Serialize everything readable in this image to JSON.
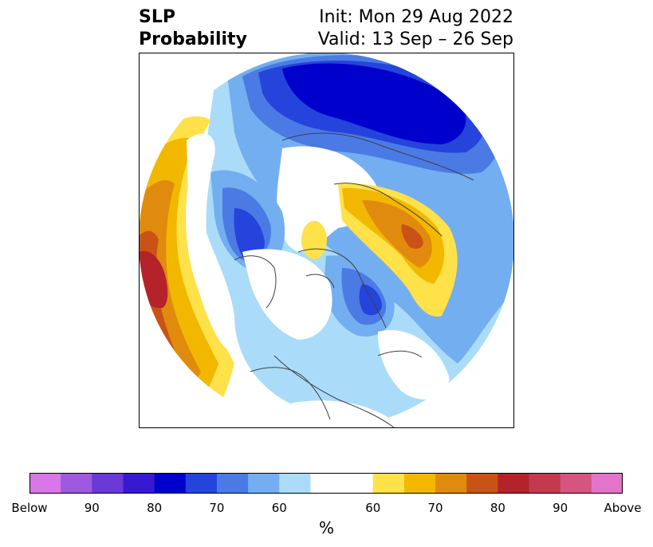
{
  "title": {
    "left_lines": [
      "SLP",
      "Probability"
    ],
    "right_lines": [
      "Init: Mon 29 Aug 2022",
      "Valid: 13 Sep – 26 Sep"
    ]
  },
  "map": {
    "projection": "north-polar-stereographic",
    "field": "SLP probability anomaly"
  },
  "colorbar": {
    "colors": [
      "#d877e8",
      "#9d59e0",
      "#6a3ad6",
      "#3819d2",
      "#0000cc",
      "#2444dc",
      "#4b7ae5",
      "#73aef0",
      "#aadcfa",
      "#ffffff",
      "#ffffff",
      "#ffe14a",
      "#f2b800",
      "#e08b0e",
      "#c95316",
      "#b4232a",
      "#c4394e",
      "#d55580",
      "#e374c8"
    ],
    "tick_labels": [
      "Below",
      "90",
      "80",
      "70",
      "60",
      "60",
      "70",
      "80",
      "90",
      "Above"
    ],
    "unit": "%"
  }
}
